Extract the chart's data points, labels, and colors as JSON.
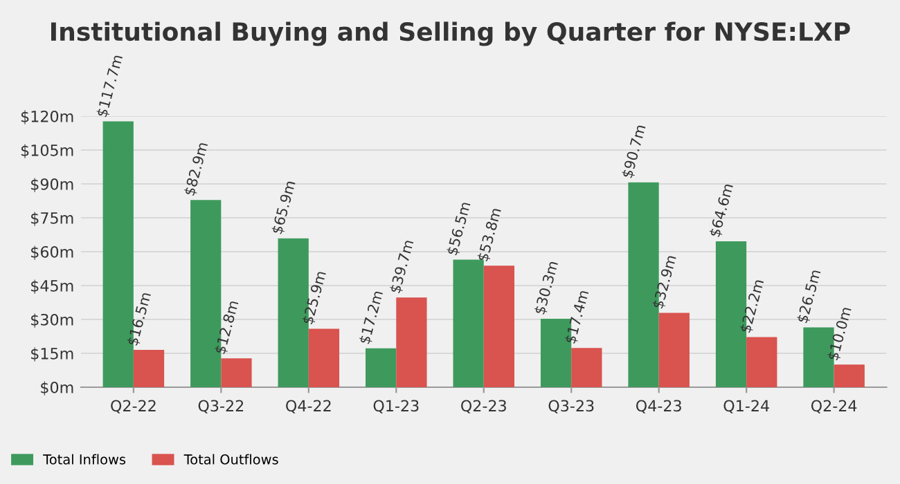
{
  "chart_data": {
    "type": "bar",
    "title": "Institutional Buying and Selling by Quarter for NYSE:LXP",
    "categories": [
      "Q2-22",
      "Q3-22",
      "Q4-22",
      "Q1-23",
      "Q2-23",
      "Q3-23",
      "Q4-23",
      "Q1-24",
      "Q2-24"
    ],
    "series": [
      {
        "name": "Total Inflows",
        "color": "#3d9a5c",
        "values": [
          117.7,
          82.9,
          65.9,
          17.2,
          56.5,
          30.3,
          90.7,
          64.6,
          26.5
        ],
        "value_labels": [
          "$117.7m",
          "$82.9m",
          "$65.9m",
          "$17.2m",
          "$56.5m",
          "$30.3m",
          "$90.7m",
          "$64.6m",
          "$26.5m"
        ]
      },
      {
        "name": "Total Outflows",
        "color": "#d9534f",
        "values": [
          16.5,
          12.8,
          25.9,
          39.7,
          53.8,
          17.4,
          32.9,
          22.2,
          10.0
        ],
        "value_labels": [
          "$16.5m",
          "$12.8m",
          "$25.9m",
          "$39.7m",
          "$53.8m",
          "$17.4m",
          "$32.9m",
          "$22.2m",
          "$10.0m"
        ]
      }
    ],
    "ylim": [
      0,
      120
    ],
    "yticks": [
      {
        "value": 0,
        "label": "$0m"
      },
      {
        "value": 15,
        "label": "$15m"
      },
      {
        "value": 30,
        "label": "$30m"
      },
      {
        "value": 45,
        "label": "$45m"
      },
      {
        "value": 60,
        "label": "$60m"
      },
      {
        "value": 75,
        "label": "$75m"
      },
      {
        "value": 90,
        "label": "$90m"
      },
      {
        "value": 105,
        "label": "$105m"
      },
      {
        "value": 120,
        "label": "$120m"
      }
    ],
    "grid": "y",
    "legend": "bottom left"
  }
}
